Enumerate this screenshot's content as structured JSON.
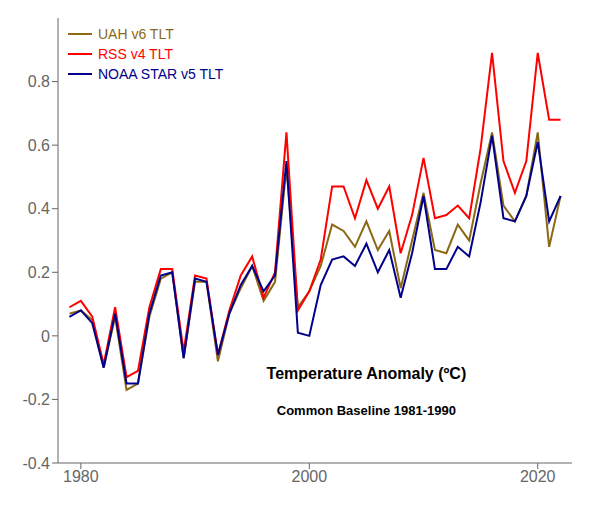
{
  "chart_data": {
    "type": "line",
    "title": "Temperature Anomaly (ºC)",
    "subtitle": "Common Baseline 1981-1990",
    "x": [
      1979,
      1980,
      1981,
      1982,
      1983,
      1984,
      1985,
      1986,
      1987,
      1988,
      1989,
      1990,
      1991,
      1992,
      1993,
      1994,
      1995,
      1996,
      1997,
      1998,
      1999,
      2000,
      2001,
      2002,
      2003,
      2004,
      2005,
      2006,
      2007,
      2008,
      2009,
      2010,
      2011,
      2012,
      2013,
      2014,
      2015,
      2016,
      2017,
      2018,
      2019,
      2020,
      2021,
      2022
    ],
    "series": [
      {
        "name": "UAH v6 TLT",
        "color": "#8B6914",
        "values": [
          0.07,
          0.08,
          0.05,
          -0.1,
          0.06,
          -0.17,
          -0.15,
          0.06,
          0.18,
          0.2,
          -0.07,
          0.17,
          0.17,
          -0.08,
          0.07,
          0.15,
          0.22,
          0.11,
          0.17,
          0.53,
          0.09,
          0.14,
          0.22,
          0.35,
          0.33,
          0.28,
          0.36,
          0.27,
          0.33,
          0.15,
          0.3,
          0.45,
          0.27,
          0.26,
          0.35,
          0.3,
          0.48,
          0.64,
          0.41,
          0.36,
          0.44,
          0.64,
          0.28,
          0.44
        ]
      },
      {
        "name": "RSS v4 TLT",
        "color": "#FF0000",
        "values": [
          0.09,
          0.11,
          0.06,
          -0.09,
          0.09,
          -0.13,
          -0.11,
          0.09,
          0.21,
          0.21,
          -0.05,
          0.19,
          0.18,
          -0.06,
          0.08,
          0.19,
          0.25,
          0.12,
          0.2,
          0.64,
          0.08,
          0.14,
          0.24,
          0.47,
          0.47,
          0.37,
          0.49,
          0.4,
          0.47,
          0.26,
          0.38,
          0.56,
          0.37,
          0.38,
          0.41,
          0.37,
          0.59,
          0.89,
          0.55,
          0.45,
          0.55,
          0.89,
          0.68,
          0.68
        ]
      },
      {
        "name": "NOAA STAR v5 TLT",
        "color": "#00008B",
        "values": [
          0.06,
          0.08,
          0.04,
          -0.1,
          0.07,
          -0.15,
          -0.15,
          0.07,
          0.19,
          0.2,
          -0.07,
          0.18,
          0.17,
          -0.06,
          0.07,
          0.16,
          0.22,
          0.14,
          0.19,
          0.55,
          0.01,
          0.0,
          0.16,
          0.24,
          0.25,
          0.22,
          0.29,
          0.2,
          0.27,
          0.12,
          0.26,
          0.44,
          0.21,
          0.21,
          0.28,
          0.25,
          0.42,
          0.63,
          0.37,
          0.36,
          0.44,
          0.61,
          0.36,
          0.44
        ]
      }
    ],
    "xlim": [
      1978,
      2023
    ],
    "xticks": [
      1980,
      2000,
      2020
    ],
    "ylim": [
      -0.4,
      1.0
    ],
    "yticks": [
      -0.4,
      -0.2,
      0.0,
      0.2,
      0.4,
      0.6,
      0.8
    ],
    "grid": false,
    "legend": "upper left"
  }
}
